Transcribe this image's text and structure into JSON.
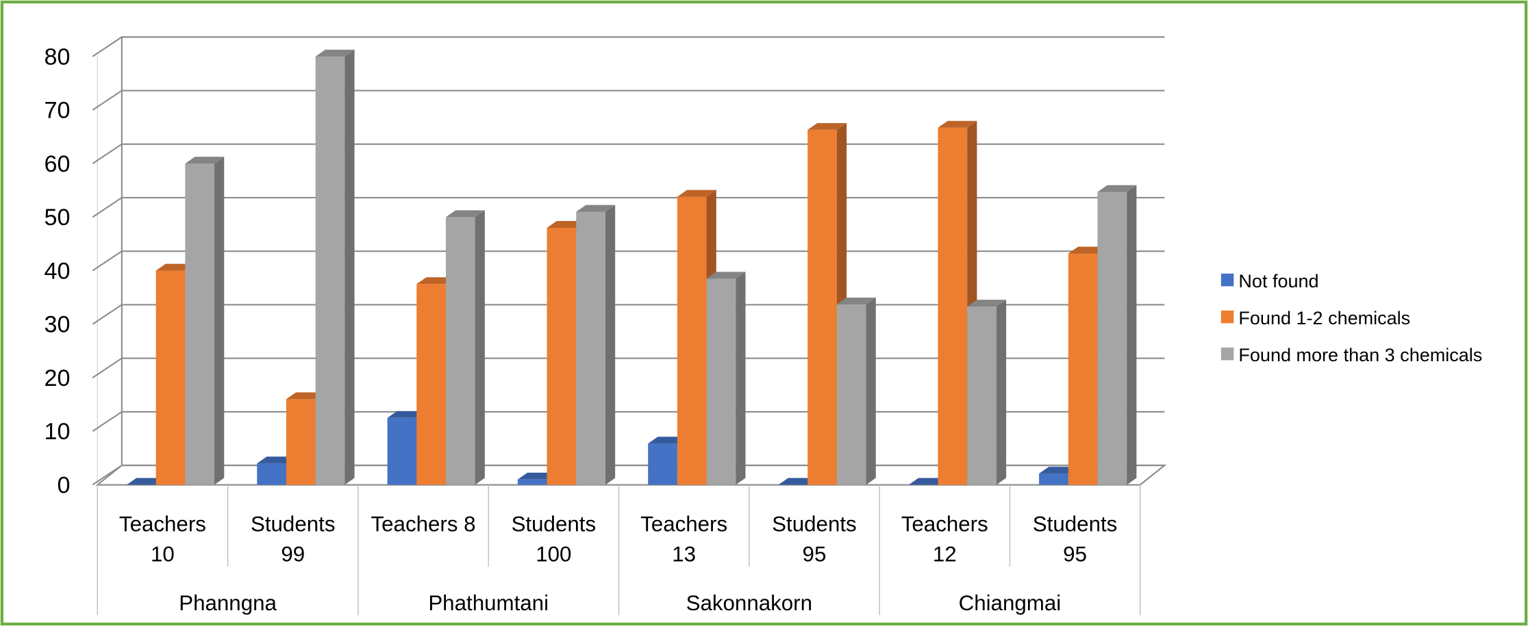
{
  "chart_data": {
    "type": "bar3d",
    "groups": [
      "Phanngna",
      "Phathumtani",
      "Sakonnakorn",
      "Chiangmai"
    ],
    "categories": [
      "Teachers 10",
      "Students 99",
      "Teachers 8",
      "Students 100",
      "Teachers 13",
      "Students 95",
      "Teachers 12",
      "Students 95"
    ],
    "series": [
      {
        "name": "Not found",
        "color": "#4472c4",
        "values": [
          0,
          4,
          12.5,
          1,
          7.7,
          0,
          0,
          2.1
        ]
      },
      {
        "name": "Found 1-2 chemicals",
        "color": "#ed7d31",
        "values": [
          40,
          16,
          37.5,
          48,
          53.8,
          66.3,
          66.7,
          43.2
        ]
      },
      {
        "name": "Found more than 3 chemicals",
        "color": "#a5a5a5",
        "values": [
          60,
          80,
          50,
          51,
          38.5,
          33.7,
          33.3,
          54.7
        ]
      }
    ],
    "ylim": [
      0,
      80
    ],
    "yticks": [
      0,
      10,
      20,
      30,
      40,
      50,
      60,
      70,
      80
    ],
    "grid": true,
    "legend": "right"
  }
}
